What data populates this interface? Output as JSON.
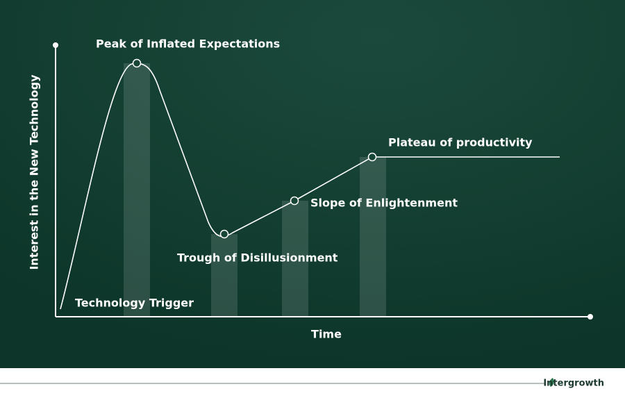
{
  "axes": {
    "x_label": "Time",
    "y_label": "Interest in the New Technology"
  },
  "phases": [
    {
      "label": "Technology Trigger"
    },
    {
      "label": "Peak of Inflated Expectations"
    },
    {
      "label": "Trough of Disillusionment"
    },
    {
      "label": "Slope of Enlightenment"
    },
    {
      "label": "Plateau of productivity"
    }
  ],
  "footer": {
    "brand": "Intergrowth"
  }
}
